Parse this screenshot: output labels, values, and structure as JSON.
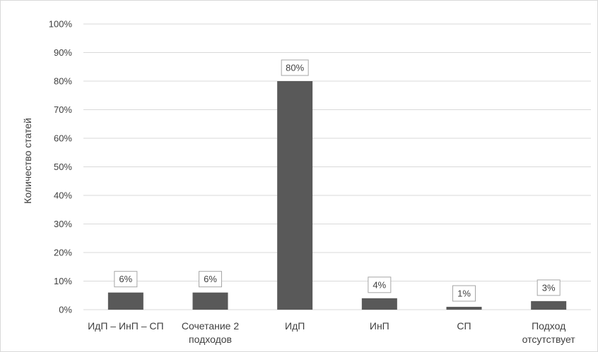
{
  "chart_data": {
    "type": "bar",
    "title": "",
    "xlabel": "",
    "ylabel": "Количество статей",
    "categories": [
      [
        "ИдП – ИнП – СП"
      ],
      [
        "Сочетание 2",
        "подходов"
      ],
      [
        "ИдП"
      ],
      [
        "ИнП"
      ],
      [
        "СП"
      ],
      [
        "Подход",
        "отсутствует"
      ]
    ],
    "values": [
      6,
      6,
      80,
      4,
      1,
      3
    ],
    "data_labels": [
      "6%",
      "6%",
      "80%",
      "4%",
      "1%",
      "3%"
    ],
    "ylim": [
      0,
      100
    ],
    "ytick_values": [
      0,
      10,
      20,
      30,
      40,
      50,
      60,
      70,
      80,
      90,
      100
    ],
    "ytick_labels": [
      "0%",
      "10%",
      "20%",
      "30%",
      "40%",
      "50%",
      "60%",
      "70%",
      "80%",
      "90%",
      "100%"
    ],
    "grid": true,
    "legend": "none",
    "colors": {
      "bar": "#595959",
      "grid": "#d9d9d9",
      "text": "#404040",
      "label_border": "#a6a6a6"
    }
  }
}
